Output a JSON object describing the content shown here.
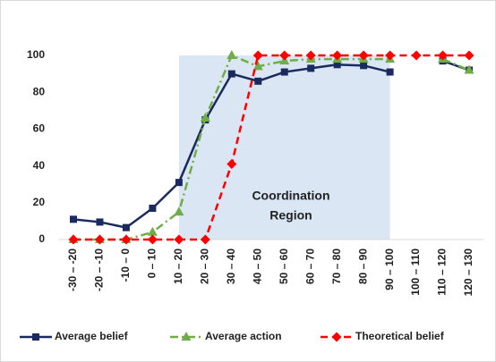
{
  "chart_data": {
    "type": "line",
    "categories": [
      "-30 – -20",
      "-20 – -10",
      "-10 – 0",
      "0 – 10",
      "10 – 20",
      "20 – 30",
      "30 – 40",
      "40 – 50",
      "50 – 60",
      "60 – 70",
      "70 – 80",
      "80 – 90",
      "90 – 100",
      "100 – 110",
      "110 – 120",
      "120 – 130"
    ],
    "series": [
      {
        "name": "Average belief",
        "color": "#1b2a5e",
        "dash": "solid",
        "marker": "square",
        "values": [
          11,
          9.5,
          6.5,
          17,
          31,
          65,
          90,
          86,
          91,
          93,
          95,
          94.5,
          91,
          null,
          97,
          92
        ]
      },
      {
        "name": "Average action",
        "color": "#70ad47",
        "dash": "dashdot",
        "marker": "triangle",
        "values": [
          0,
          0,
          0,
          4,
          15,
          66,
          100,
          94,
          97,
          98,
          98,
          98,
          98,
          null,
          98,
          92
        ]
      },
      {
        "name": "Theoretical belief",
        "color": "#ff0000",
        "dash": "dash",
        "marker": "diamond",
        "values": [
          0,
          0,
          0,
          0,
          0,
          0,
          41,
          100,
          100,
          100,
          100,
          100,
          100,
          100,
          100,
          100
        ]
      }
    ],
    "annotation": [
      "Coordination",
      "Region"
    ],
    "ylim": [
      0,
      100
    ],
    "yticks": [
      0,
      20,
      40,
      60,
      80,
      100
    ],
    "grid": false,
    "legend": "bottom"
  }
}
